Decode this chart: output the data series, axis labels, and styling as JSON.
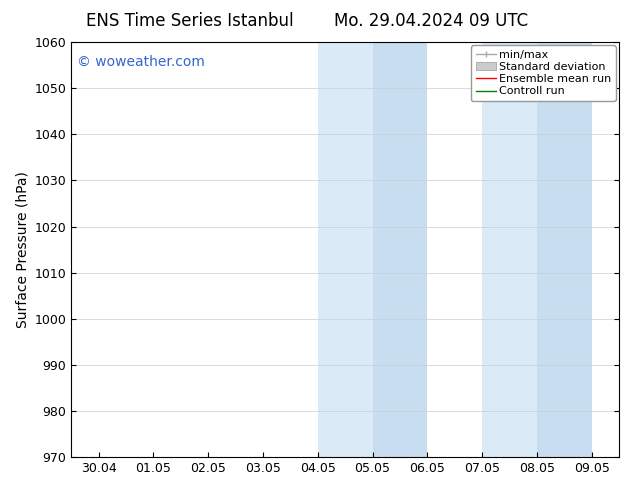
{
  "title_left": "ENS Time Series Istanbul",
  "title_right": "Mo. 29.04.2024 09 UTC",
  "ylabel": "Surface Pressure (hPa)",
  "ylim": [
    970,
    1060
  ],
  "yticks": [
    970,
    980,
    990,
    1000,
    1010,
    1020,
    1030,
    1040,
    1050,
    1060
  ],
  "xtick_labels": [
    "30.04",
    "01.05",
    "02.05",
    "03.05",
    "04.05",
    "05.05",
    "06.05",
    "07.05",
    "08.05",
    "09.05"
  ],
  "xtick_positions": [
    0,
    1,
    2,
    3,
    4,
    5,
    6,
    7,
    8,
    9
  ],
  "xlim": [
    -0.5,
    9.5
  ],
  "shaded_bands": [
    {
      "x_start": 4.0,
      "x_end": 5.0,
      "color": "#daeaf7"
    },
    {
      "x_start": 5.0,
      "x_end": 6.0,
      "color": "#c8ddf0"
    },
    {
      "x_start": 7.0,
      "x_end": 8.0,
      "color": "#daeaf7"
    },
    {
      "x_start": 8.0,
      "x_end": 9.0,
      "color": "#c8ddf0"
    }
  ],
  "watermark_text": "© woweather.com",
  "watermark_color": "#3366cc",
  "watermark_fontsize": 10,
  "background_color": "#ffffff",
  "plot_bg_color": "#ffffff",
  "title_fontsize": 12,
  "axis_label_fontsize": 10,
  "tick_fontsize": 9,
  "legend_fontsize": 8,
  "grid_color": "#cccccc",
  "spine_color": "#000000"
}
